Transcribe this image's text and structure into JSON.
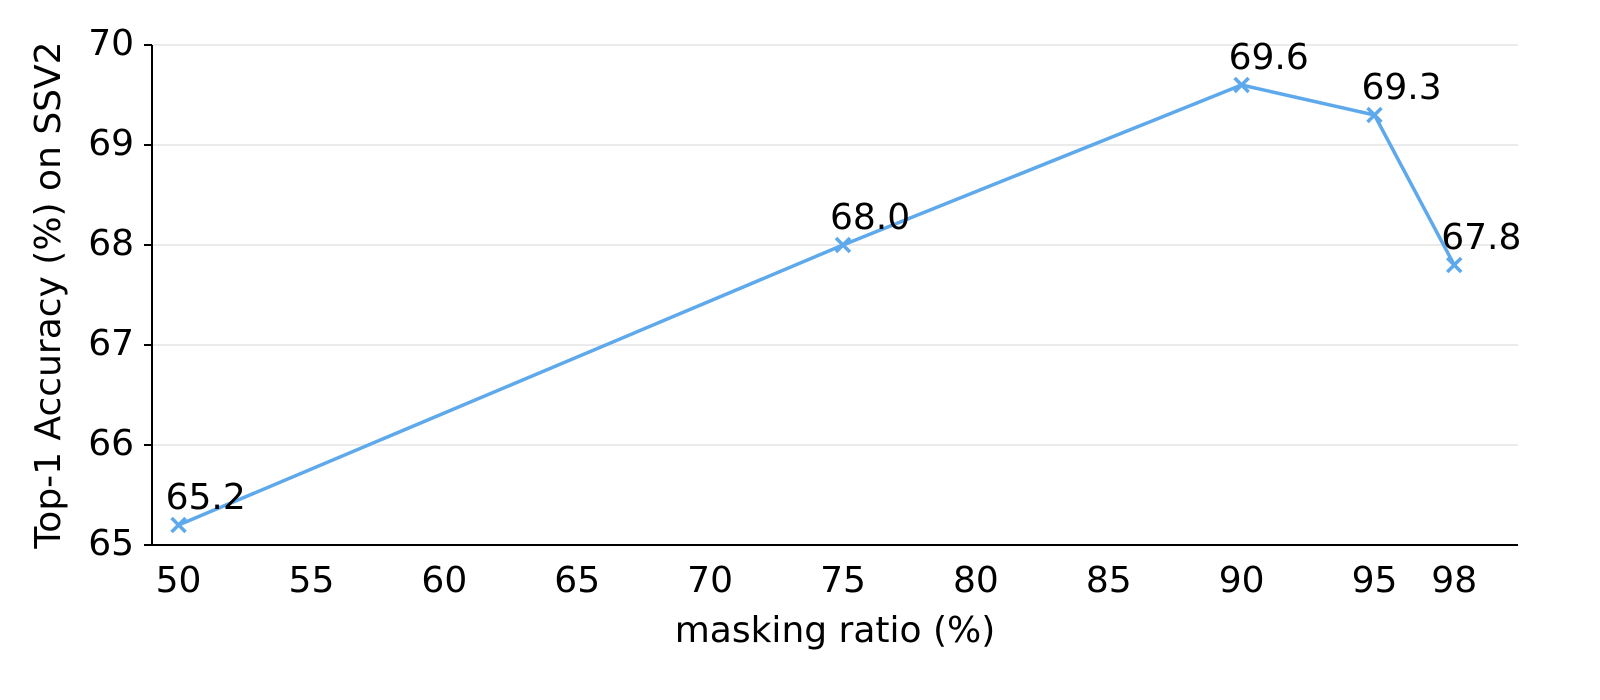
{
  "chart_data": {
    "type": "line",
    "xlabel": "masking ratio (%)",
    "ylabel": "Top-1 Accuracy (%) on SSV2",
    "x": [
      50,
      75,
      90,
      95,
      98
    ],
    "values": [
      65.2,
      68.0,
      69.6,
      69.3,
      67.8
    ],
    "value_labels": [
      "65.2",
      "68.0",
      "69.6",
      "69.3",
      "67.8"
    ],
    "color": "#5ea8ec",
    "marker": "x",
    "xlim": [
      49,
      100.4
    ],
    "xticks": [
      50,
      55,
      60,
      65,
      70,
      75,
      80,
      85,
      90,
      95,
      98
    ],
    "ylim": [
      65,
      70
    ],
    "yticks": [
      65,
      66,
      67,
      68,
      69,
      70
    ],
    "grid": true
  }
}
